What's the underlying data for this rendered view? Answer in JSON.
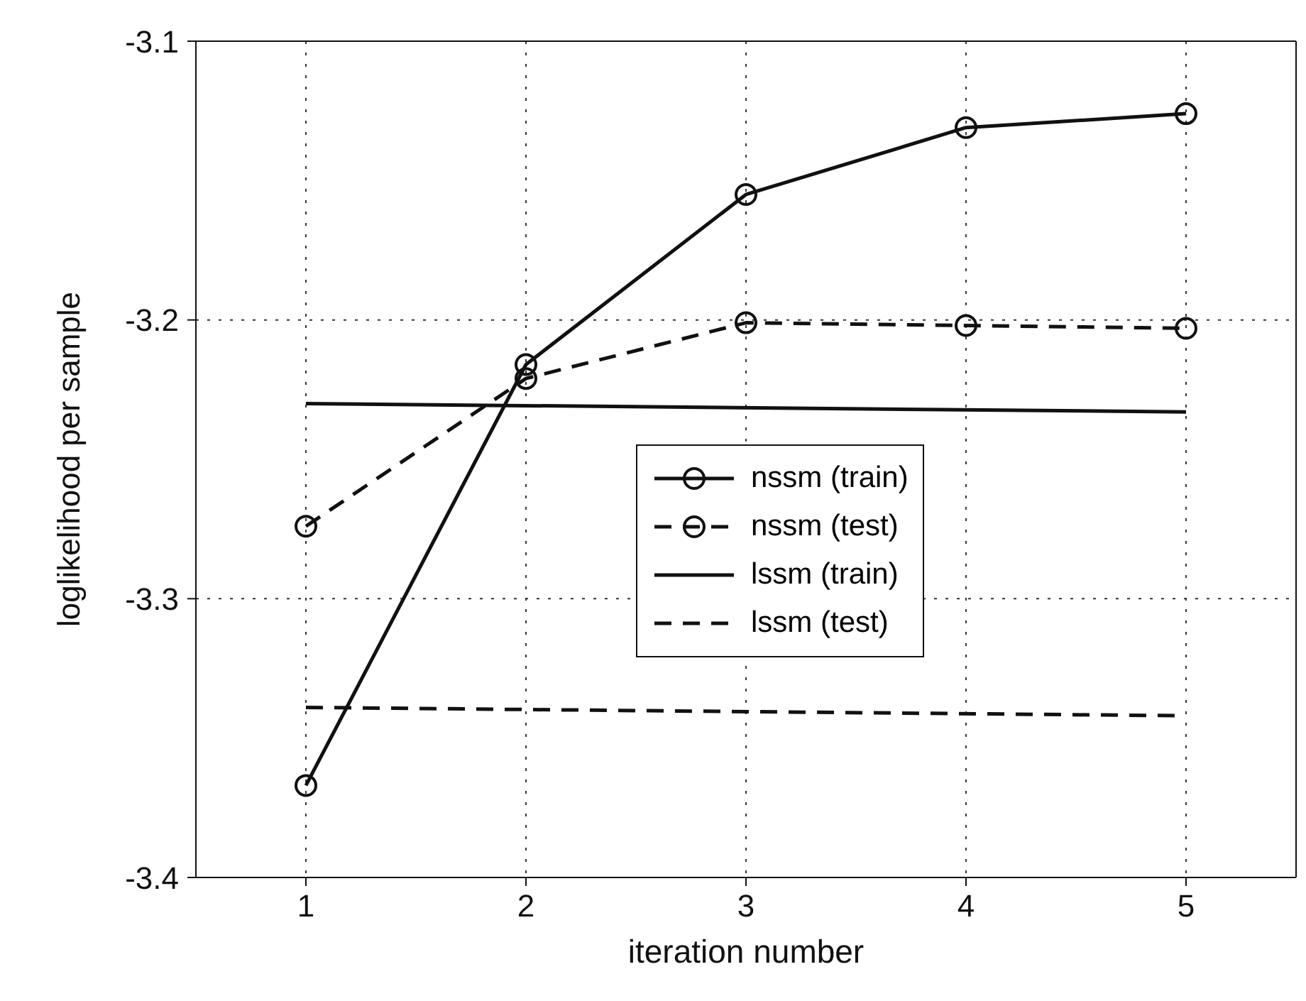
{
  "chart_data": {
    "type": "line",
    "xlabel": "iteration number",
    "ylabel": "loglikelihood per sample",
    "x": [
      1,
      2,
      3,
      4,
      5
    ],
    "series": [
      {
        "name": "nssm (train)",
        "color": "#111111",
        "values": [
          -3.367,
          -3.216,
          -3.155,
          -3.131,
          -3.126
        ],
        "marker": "circle",
        "line_style": "solid"
      },
      {
        "name": "nssm (test)",
        "color": "#111111",
        "values": [
          -3.274,
          -3.221,
          -3.201,
          -3.202,
          -3.203
        ],
        "marker": "circle",
        "line_style": "dashed"
      },
      {
        "name": "lssm (train)",
        "color": "#111111",
        "values": [
          -3.23,
          null,
          null,
          null,
          -3.233
        ],
        "marker": "none",
        "line_style": "solid"
      },
      {
        "name": "lssm (test)",
        "color": "#111111",
        "values": [
          -3.339,
          null,
          null,
          null,
          -3.342
        ],
        "marker": "none",
        "line_style": "dashed"
      }
    ],
    "xlim": [
      0.5,
      5.5
    ],
    "xticks": [
      1,
      2,
      3,
      4,
      5
    ],
    "ylim": [
      -3.4,
      -3.1
    ],
    "yticks": [
      -3.4,
      -3.3,
      -3.2,
      -3.1
    ],
    "grid": true,
    "legend": "right"
  }
}
